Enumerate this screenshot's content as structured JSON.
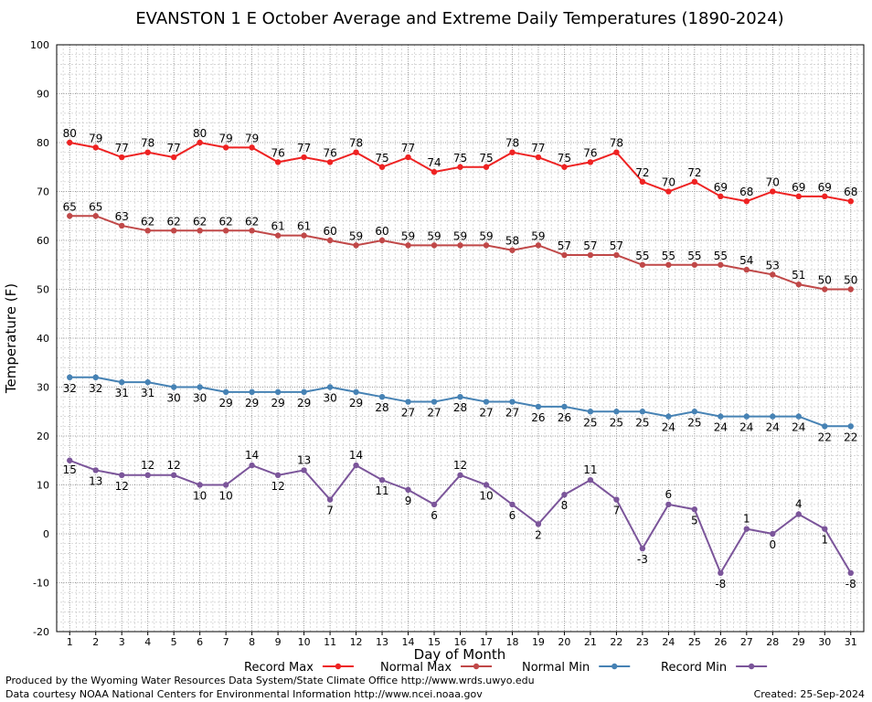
{
  "chart_data": {
    "type": "line",
    "title": "EVANSTON 1 E October Average and Extreme Daily Temperatures (1890-2024)",
    "xlabel": "Day of Month",
    "ylabel": "Temperature (F)",
    "ylim": [
      -20,
      100
    ],
    "yticks": [
      -20,
      -10,
      0,
      10,
      20,
      30,
      40,
      50,
      60,
      70,
      80,
      90,
      100
    ],
    "x": [
      1,
      2,
      3,
      4,
      5,
      6,
      7,
      8,
      9,
      10,
      11,
      12,
      13,
      14,
      15,
      16,
      17,
      18,
      19,
      20,
      21,
      22,
      23,
      24,
      25,
      26,
      27,
      28,
      29,
      30,
      31
    ],
    "grid": true,
    "legend_position": "bottom",
    "series": [
      {
        "name": "Record Max",
        "color": "#ee2222",
        "values": [
          80,
          79,
          77,
          78,
          77,
          80,
          79,
          79,
          76,
          77,
          76,
          78,
          75,
          77,
          74,
          75,
          75,
          78,
          77,
          75,
          76,
          78,
          72,
          70,
          72,
          69,
          68,
          70,
          69,
          69,
          68
        ]
      },
      {
        "name": "Normal Max",
        "color": "#c04848",
        "values": [
          65,
          65,
          63,
          62,
          62,
          62,
          62,
          62,
          61,
          61,
          60,
          59,
          60,
          59,
          59,
          59,
          59,
          58,
          59,
          57,
          57,
          57,
          55,
          55,
          55,
          55,
          54,
          53,
          51,
          50,
          50
        ]
      },
      {
        "name": "Normal Min",
        "color": "#4682b4",
        "values": [
          32,
          32,
          31,
          31,
          30,
          30,
          29,
          29,
          29,
          29,
          30,
          29,
          28,
          27,
          27,
          28,
          27,
          27,
          26,
          26,
          25,
          25,
          25,
          24,
          25,
          24,
          24,
          24,
          24,
          22,
          22
        ]
      },
      {
        "name": "Record Min",
        "color": "#7b559a",
        "values": [
          15,
          13,
          12,
          12,
          12,
          10,
          10,
          14,
          12,
          13,
          7,
          14,
          11,
          9,
          6,
          12,
          10,
          6,
          2,
          8,
          11,
          7,
          -3,
          6,
          5,
          -8,
          1,
          0,
          4,
          1,
          -8
        ]
      }
    ]
  },
  "footer": {
    "produced": "Produced by the Wyoming Water Resources Data System/State Climate Office http://www.wrds.uwyo.edu",
    "courtesy": "Data courtesy NOAA National Centers for Environmental Information http://www.ncei.noaa.gov",
    "created": "Created:  25-Sep-2024"
  }
}
